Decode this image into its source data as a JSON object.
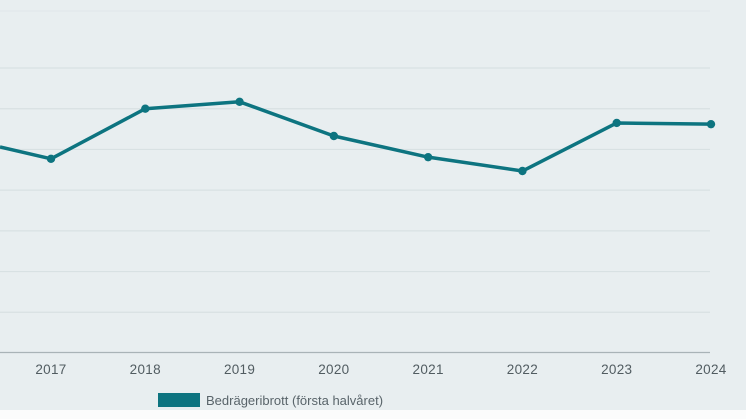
{
  "page": {
    "background_color": "#e8eef0",
    "footer_strip_color": "#fbfcfc"
  },
  "colors": {
    "series_teal": "#0d7480",
    "gridline": "#d8e1e3",
    "plot_top_border": "#dfe7ea",
    "axis_baseline": "#a9b3b7",
    "axis_label_text": "#515c61",
    "legend_text": "#59646a"
  },
  "chart_data": {
    "type": "line",
    "title": "",
    "xlabel": "",
    "ylabel": "",
    "x": [
      "2017",
      "2018",
      "2019",
      "2020",
      "2021",
      "2022",
      "2023",
      "2024"
    ],
    "series": [
      {
        "name": "Bedrägeribrott (första halvåret)",
        "color": "#0d7480",
        "values": [
          4.77,
          6.0,
          6.17,
          5.33,
          4.81,
          4.47,
          5.65,
          5.62
        ],
        "lead_in_value_at_left_edge": 5.06
      }
    ],
    "value_units": "gridline-intervals above baseline (no y-axis tick labels are visible in the image)",
    "ylim": [
      0,
      8.4
    ],
    "grid": true,
    "gridline_count": 7,
    "legend_position": "bottom-left",
    "x_axis_line_visible": true,
    "y_axis_line_visible": false,
    "markers": "filled-circle"
  },
  "legend": {
    "items": [
      {
        "label": "Bedrägeribrott (första halvåret)",
        "swatch_color": "#0d7480"
      }
    ]
  }
}
